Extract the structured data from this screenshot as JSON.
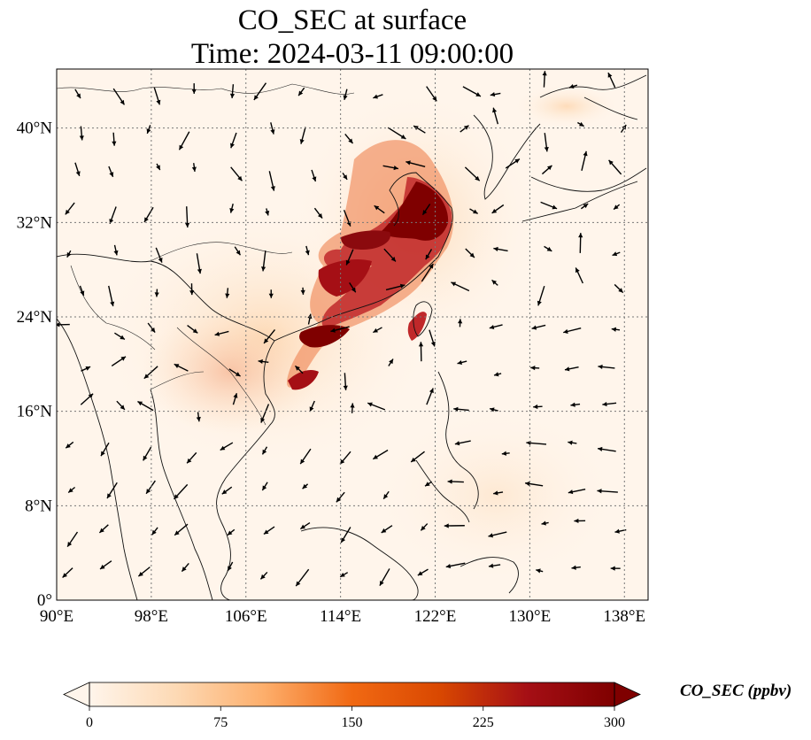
{
  "title": {
    "line1": "CO_SEC at surface",
    "line2": "Time: 2024-03-11 09:00:00"
  },
  "map": {
    "variable": "CO_SEC",
    "units": "ppbv",
    "lon_range": [
      90,
      140
    ],
    "lat_range": [
      0,
      45
    ],
    "gridlines": true,
    "x_ticks": [
      {
        "value": 90,
        "label": "90°E"
      },
      {
        "value": 98,
        "label": "98°E"
      },
      {
        "value": 106,
        "label": "106°E"
      },
      {
        "value": 114,
        "label": "114°E"
      },
      {
        "value": 122,
        "label": "122°E"
      },
      {
        "value": 130,
        "label": "130°E"
      },
      {
        "value": 138,
        "label": "138°E"
      }
    ],
    "y_ticks": [
      {
        "value": 0,
        "label": "0°"
      },
      {
        "value": 8,
        "label": "8°N"
      },
      {
        "value": 16,
        "label": "16°N"
      },
      {
        "value": 24,
        "label": "24°N"
      },
      {
        "value": 32,
        "label": "32°N"
      },
      {
        "value": 40,
        "label": "40°N"
      }
    ],
    "overlays": [
      "coastlines",
      "country-borders",
      "wind-vectors"
    ]
  },
  "colorbar": {
    "label": "CO_SEC (ppbv)",
    "min": 0,
    "max": 300,
    "extend": "both",
    "colormap": [
      "#fff5eb",
      "#fdd9b4",
      "#fdae6b",
      "#f16913",
      "#d94801",
      "#a50f15",
      "#7f0000"
    ],
    "ticks": [
      {
        "value": 0,
        "label": "0"
      },
      {
        "value": 75,
        "label": "75"
      },
      {
        "value": 150,
        "label": "150"
      },
      {
        "value": 225,
        "label": "225"
      },
      {
        "value": 300,
        "label": "300"
      }
    ]
  }
}
